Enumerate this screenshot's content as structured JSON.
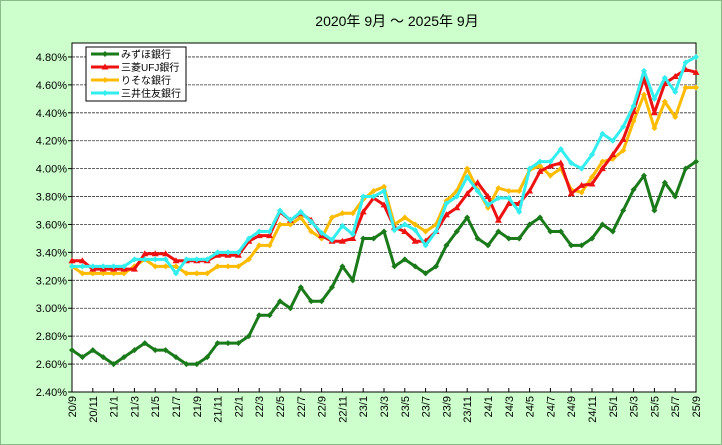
{
  "chart_data": {
    "type": "line",
    "title": "2020年 9月 ～ 2025年 9月",
    "xlabel": "",
    "ylabel": "",
    "ylim": [
      2.4,
      4.9
    ],
    "yticks": [
      "2.40%",
      "2.60%",
      "2.80%",
      "3.00%",
      "3.20%",
      "3.40%",
      "3.60%",
      "3.80%",
      "4.00%",
      "4.20%",
      "4.40%",
      "4.60%",
      "4.80%"
    ],
    "ytick_values": [
      2.4,
      2.6,
      2.8,
      3.0,
      3.2,
      3.4,
      3.6,
      3.8,
      4.0,
      4.2,
      4.4,
      4.6,
      4.8
    ],
    "grid": true,
    "legend_position": "top-left",
    "x_tick_labels": [
      "20/9",
      "20/11",
      "21/1",
      "21/3",
      "21/5",
      "21/7",
      "21/9",
      "21/11",
      "22/1",
      "22/3",
      "22/5",
      "22/7",
      "22/9",
      "22/11",
      "23/1",
      "23/3",
      "23/5",
      "23/7",
      "23/9",
      "23/11",
      "24/1",
      "24/3",
      "24/5",
      "24/7",
      "24/9",
      "24/11",
      "25/1",
      "25/3",
      "25/5",
      "25/7",
      "25/9"
    ],
    "x_points": 61,
    "series": [
      {
        "name": "みずほ銀行",
        "color": "#1a7a1a",
        "marker": "diamond",
        "values": [
          2.7,
          2.65,
          2.7,
          2.65,
          2.6,
          2.65,
          2.7,
          2.75,
          2.7,
          2.7,
          2.65,
          2.6,
          2.6,
          2.65,
          2.75,
          2.75,
          2.75,
          2.8,
          2.95,
          2.95,
          3.05,
          3.0,
          3.15,
          3.05,
          3.05,
          3.15,
          3.3,
          3.2,
          3.5,
          3.5,
          3.55,
          3.3,
          3.35,
          3.3,
          3.25,
          3.3,
          3.45,
          3.55,
          3.65,
          3.5,
          3.45,
          3.55,
          3.5,
          3.5,
          3.6,
          3.65,
          3.55,
          3.55,
          3.45,
          3.45,
          3.5,
          3.6,
          3.55,
          3.7,
          3.85,
          3.95,
          3.7,
          3.9,
          3.8,
          4.0,
          4.05
        ]
      },
      {
        "name": "三菱UFJ銀行",
        "color": "#ee1111",
        "marker": "triangle",
        "values": [
          3.34,
          3.34,
          3.28,
          3.28,
          3.28,
          3.28,
          3.28,
          3.39,
          3.39,
          3.39,
          3.34,
          3.34,
          3.34,
          3.34,
          3.38,
          3.38,
          3.38,
          3.48,
          3.52,
          3.52,
          3.69,
          3.63,
          3.68,
          3.63,
          3.52,
          3.48,
          3.48,
          3.5,
          3.69,
          3.79,
          3.74,
          3.58,
          3.55,
          3.48,
          3.48,
          3.55,
          3.67,
          3.72,
          3.82,
          3.9,
          3.8,
          3.63,
          3.75,
          3.75,
          3.84,
          3.98,
          4.02,
          4.04,
          3.82,
          3.88,
          3.89,
          4.0,
          4.1,
          4.21,
          4.41,
          4.65,
          4.4,
          4.61,
          4.66,
          4.71,
          4.69
        ]
      },
      {
        "name": "りそな銀行",
        "color": "#ffbb00",
        "marker": "diamond",
        "values": [
          3.3,
          3.25,
          3.25,
          3.25,
          3.25,
          3.25,
          3.3,
          3.35,
          3.3,
          3.3,
          3.3,
          3.25,
          3.25,
          3.25,
          3.3,
          3.3,
          3.3,
          3.35,
          3.45,
          3.45,
          3.6,
          3.6,
          3.65,
          3.55,
          3.5,
          3.65,
          3.68,
          3.68,
          3.78,
          3.84,
          3.87,
          3.6,
          3.65,
          3.6,
          3.55,
          3.6,
          3.77,
          3.84,
          4.0,
          3.85,
          3.72,
          3.86,
          3.84,
          3.84,
          3.99,
          4.02,
          3.95,
          4.0,
          3.85,
          3.83,
          3.94,
          4.05,
          4.07,
          4.13,
          4.34,
          4.53,
          4.29,
          4.48,
          4.37,
          4.58,
          4.58
        ]
      },
      {
        "name": "三井住友銀行",
        "color": "#33eeee",
        "marker": "diamond",
        "values": [
          3.3,
          3.3,
          3.3,
          3.3,
          3.3,
          3.3,
          3.35,
          3.35,
          3.35,
          3.35,
          3.25,
          3.35,
          3.35,
          3.35,
          3.4,
          3.4,
          3.4,
          3.5,
          3.55,
          3.55,
          3.7,
          3.63,
          3.69,
          3.62,
          3.54,
          3.49,
          3.59,
          3.53,
          3.8,
          3.8,
          3.84,
          3.56,
          3.6,
          3.56,
          3.45,
          3.55,
          3.75,
          3.8,
          3.94,
          3.84,
          3.74,
          3.79,
          3.79,
          3.69,
          4.0,
          4.05,
          4.05,
          4.14,
          4.04,
          4.0,
          4.1,
          4.25,
          4.2,
          4.3,
          4.45,
          4.7,
          4.5,
          4.65,
          4.55,
          4.76,
          4.8
        ]
      }
    ]
  }
}
